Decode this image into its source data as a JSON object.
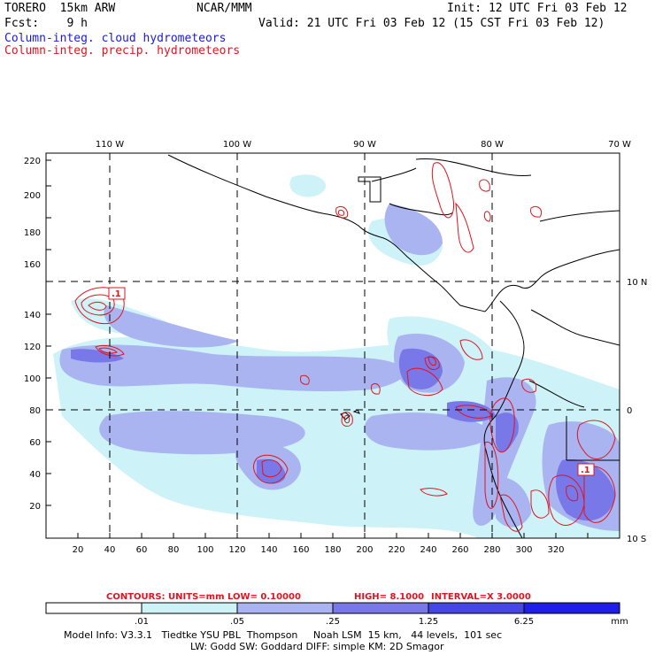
{
  "header": {
    "model": "TORERO  15km ARW",
    "agency": "NCAR/MMM",
    "init": "Init: 12 UTC Fri 03 Feb 12",
    "fcst": "Fcst:    9 h",
    "valid": "Valid: 21 UTC Fri 03 Feb 12 (15 CST Fri 03 Feb 12)",
    "field1": "Column-integ. cloud hydrometeors",
    "field2": "Column-integ. precip. hydrometeors"
  },
  "axes": {
    "x_ticks": [
      "20",
      "40",
      "60",
      "80",
      "100",
      "120",
      "140",
      "160",
      "180",
      "200",
      "220",
      "240",
      "260",
      "280",
      "300",
      "320"
    ],
    "y_ticks": [
      "20",
      "40",
      "60",
      "80",
      "100",
      "120",
      "140",
      "160",
      "180",
      "200",
      "220"
    ],
    "lon_labels": [
      "110 W",
      "100 W",
      "90 W",
      "80 W",
      "70 W"
    ],
    "lat_labels": [
      "10 N",
      "0",
      "10 S"
    ]
  },
  "map_labels": {
    "low_label_1": ".1",
    "low_label_2": ".1"
  },
  "contour_info": {
    "units": "CONTOURS:  UNITS=mm  LOW= 0.10000",
    "high": "HIGH=  8.1000",
    "interval": "INTERVAL=X  3.0000"
  },
  "colorbar": {
    "labels": [
      ".01",
      ".05",
      ".25",
      "1.25",
      "6.25"
    ],
    "unit": "mm",
    "colors": [
      "#ffffff",
      "#cdf3f8",
      "#aab4f0",
      "#7878e8",
      "#4646e6",
      "#1e1ee8"
    ]
  },
  "model_info": {
    "line1": "Model Info: V3.3.1   Tiedtke YSU PBL  Thompson     Noah LSM  15 km,   44 levels,  101 sec",
    "line2": "LW: Godd SW: Goddard DIFF: simple KM: 2D Smagor"
  }
}
